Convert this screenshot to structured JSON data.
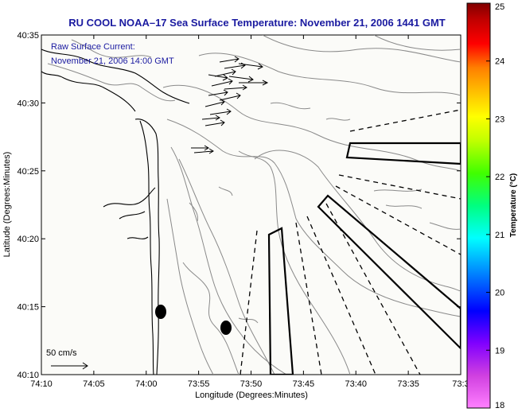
{
  "title": "RU COOL  NOAA–17  Sea Surface Temperature:  November 21, 2006 1441 GMT",
  "annotation": {
    "line1": "Raw Surface Current:",
    "line2": "November 21, 2006 14:00 GMT"
  },
  "axes": {
    "xlabel": "Longitude (Degrees:Minutes)",
    "ylabel": "Latitude (Degrees:Minutes)",
    "x_ticks": [
      "74:10",
      "74:05",
      "74:00",
      "73:55",
      "73:50",
      "73:45",
      "73:40",
      "73:35",
      "73:3"
    ],
    "y_ticks": [
      "40:35",
      "40:30",
      "40:25",
      "40:20",
      "40:15",
      "40:10"
    ]
  },
  "scale": {
    "label": "50 cm/s"
  },
  "colorbar": {
    "label": "Temperature (°C)",
    "ticks": [
      "25",
      "24",
      "23",
      "22",
      "21",
      "20",
      "19",
      "18"
    ],
    "range": [
      18,
      25
    ],
    "colors": [
      "#ff80ff",
      "#d040e0",
      "#8000ff",
      "#0000ff",
      "#0080ff",
      "#00ffff",
      "#00ff80",
      "#40ff00",
      "#c0ff00",
      "#ffff00",
      "#ffc000",
      "#ff8000",
      "#ff0000",
      "#c00000",
      "#800000"
    ]
  },
  "colors": {
    "ocean": "#fbfbf8",
    "contour": "#8a8a8a",
    "text": "#1a1aa0"
  }
}
